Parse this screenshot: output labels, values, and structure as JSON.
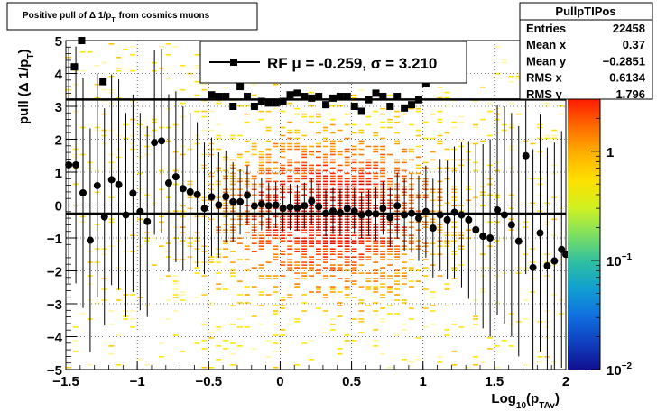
{
  "title": "Positive pull of Δ 1/p",
  "title_sub": "T",
  "title_tail": "from cosmics muons",
  "stats": {
    "name": "PullpTIPos",
    "rows": [
      {
        "label": "Entries",
        "value": "22458"
      },
      {
        "label": "Mean x",
        "value": "0.37"
      },
      {
        "label": "Mean y",
        "value": "−0.2851"
      },
      {
        "label": "RMS x",
        "value": "0.6134"
      },
      {
        "label": "RMS y",
        "value": "1.796"
      }
    ]
  },
  "legend": {
    "text": "RF μ = -0.259, σ =   3.210"
  },
  "colors": {
    "axis": "#000000",
    "marker": "#000000",
    "palette": [
      "#00007f",
      "#0000ff",
      "#0080ff",
      "#00ffff",
      "#80ff80",
      "#ffff00",
      "#ff8000",
      "#ff0000",
      "#800000"
    ]
  },
  "chart_data": {
    "type": "scatter",
    "title": "Positive pull of Δ 1/pT from cosmics muons",
    "xlabel": "Log10(pTAv)",
    "xlabel_main": "Log",
    "xlabel_sub1": "10",
    "xlabel_mid": "(p",
    "xlabel_sub2": "TAv",
    "xlabel_end": ")",
    "ylabel": "pull (Δ 1/pT)",
    "ylabel_main": "pull (Δ 1/p",
    "ylabel_sub": "T",
    "ylabel_end": ")",
    "xlim": [
      -1.5,
      2.0
    ],
    "ylim": [
      -5,
      5
    ],
    "x_ticks": [
      -1.5,
      -1,
      -0.5,
      0,
      0.5,
      1,
      1.5,
      2
    ],
    "x_tick_labels": [
      "−1.5",
      "−1",
      "−0.5",
      "0",
      "0.5",
      "1",
      "1.5",
      "2"
    ],
    "y_ticks": [
      -5,
      -4,
      -3,
      -2,
      -1,
      0,
      1,
      2,
      3,
      4,
      5
    ],
    "y_tick_labels": [
      "−5",
      "−4",
      "−3",
      "−2",
      "−1",
      "0",
      "1",
      "2",
      "3",
      "4",
      "5"
    ],
    "grid": true,
    "colorbar": {
      "scale": "log",
      "range": [
        0.01,
        3
      ],
      "tick_values": [
        1,
        0.1,
        0.01
      ],
      "tick_bases": [
        "1",
        "10",
        "10"
      ],
      "tick_exps": [
        "",
        "−1",
        "−2"
      ]
    },
    "mean_line": -0.259,
    "sigma_line": 3.21,
    "profile_points": [
      [
        -1.48,
        1.22,
        3.6
      ],
      [
        -1.43,
        1.22,
        3.6
      ],
      [
        -1.38,
        0.37,
        3.5
      ],
      [
        -1.33,
        -1.07,
        3.4
      ],
      [
        -1.28,
        0.59,
        3.4
      ],
      [
        -1.23,
        -0.36,
        3.3
      ],
      [
        -1.18,
        0.77,
        3.2
      ],
      [
        -1.13,
        0.62,
        3.2
      ],
      [
        -1.08,
        -0.3,
        3.1
      ],
      [
        -1.03,
        0.36,
        3.0
      ],
      [
        -0.98,
        -0.2,
        3.0
      ],
      [
        -0.93,
        -0.5,
        2.9
      ],
      [
        -0.88,
        1.9,
        2.8
      ],
      [
        -0.83,
        1.95,
        2.8
      ],
      [
        -0.78,
        0.67,
        2.7
      ],
      [
        -0.73,
        0.86,
        2.6
      ],
      [
        -0.68,
        0.5,
        2.5
      ],
      [
        -0.63,
        0.4,
        2.4
      ],
      [
        -0.58,
        0.32,
        2.2
      ],
      [
        -0.53,
        -0.1,
        2.0
      ],
      [
        -0.48,
        0.25,
        1.8
      ],
      [
        -0.43,
        0.0,
        1.6
      ],
      [
        -0.38,
        0.26,
        1.4
      ],
      [
        -0.33,
        0.1,
        1.2
      ],
      [
        -0.28,
        0.1,
        1.0
      ],
      [
        -0.23,
        0.3,
        0.9
      ],
      [
        -0.18,
        -0.03,
        0.8
      ],
      [
        -0.13,
        0.03,
        0.8
      ],
      [
        -0.08,
        -0.02,
        0.7
      ],
      [
        -0.03,
        0.0,
        0.7
      ],
      [
        0.02,
        -0.1,
        0.7
      ],
      [
        0.07,
        -0.06,
        0.7
      ],
      [
        0.12,
        -0.08,
        0.7
      ],
      [
        0.17,
        -0.02,
        0.7
      ],
      [
        0.22,
        0.12,
        0.7
      ],
      [
        0.27,
        -0.05,
        0.7
      ],
      [
        0.32,
        -0.25,
        0.7
      ],
      [
        0.37,
        -0.18,
        0.7
      ],
      [
        0.42,
        -0.23,
        0.7
      ],
      [
        0.47,
        -0.1,
        0.7
      ],
      [
        0.52,
        -0.18,
        0.7
      ],
      [
        0.57,
        -0.3,
        0.7
      ],
      [
        0.62,
        -0.25,
        0.7
      ],
      [
        0.67,
        -0.27,
        0.8
      ],
      [
        0.72,
        -0.1,
        0.8
      ],
      [
        0.77,
        -0.38,
        0.9
      ],
      [
        0.82,
        -0.02,
        1.0
      ],
      [
        0.87,
        -0.3,
        1.1
      ],
      [
        0.92,
        -0.25,
        1.2
      ],
      [
        0.97,
        -0.4,
        1.3
      ],
      [
        1.02,
        -0.2,
        1.4
      ],
      [
        1.07,
        -0.7,
        1.5
      ],
      [
        1.12,
        -0.3,
        1.7
      ],
      [
        1.17,
        -0.45,
        1.8
      ],
      [
        1.22,
        -0.22,
        2.0
      ],
      [
        1.27,
        -0.3,
        2.2
      ],
      [
        1.32,
        -0.45,
        2.4
      ],
      [
        1.37,
        -0.75,
        2.6
      ],
      [
        1.42,
        -0.95,
        2.8
      ],
      [
        1.47,
        -1.0,
        3.0
      ],
      [
        1.52,
        -0.15,
        3.2
      ],
      [
        1.57,
        -0.3,
        3.3
      ],
      [
        1.62,
        -0.6,
        3.4
      ],
      [
        1.67,
        -1.1,
        3.5
      ],
      [
        1.72,
        1.5,
        3.6
      ],
      [
        1.77,
        -1.9,
        3.6
      ],
      [
        1.82,
        -0.85,
        3.6
      ],
      [
        1.87,
        -1.85,
        3.6
      ],
      [
        1.92,
        -1.7,
        3.6
      ],
      [
        1.97,
        -1.35,
        3.6
      ],
      [
        2.0,
        -1.5,
        3.6
      ]
    ],
    "high_points": [
      [
        -1.44,
        4.2
      ],
      [
        -1.39,
        5.0
      ],
      [
        -1.24,
        3.75
      ],
      [
        -0.48,
        3.35
      ],
      [
        -0.43,
        3.3
      ],
      [
        -0.38,
        3.3
      ],
      [
        -0.33,
        3.0
      ],
      [
        -0.28,
        3.6
      ],
      [
        -0.23,
        3.3
      ],
      [
        -0.18,
        3.0
      ],
      [
        -0.13,
        3.15
      ],
      [
        -0.08,
        3.1
      ],
      [
        -0.03,
        3.1
      ],
      [
        0.02,
        3.15
      ],
      [
        0.07,
        3.35
      ],
      [
        0.12,
        3.4
      ],
      [
        0.17,
        3.3
      ],
      [
        0.22,
        3.25
      ],
      [
        0.27,
        3.3
      ],
      [
        0.32,
        3.05
      ],
      [
        0.37,
        3.25
      ],
      [
        0.42,
        3.3
      ],
      [
        0.47,
        3.3
      ],
      [
        0.52,
        3.0
      ],
      [
        0.57,
        2.85
      ],
      [
        0.62,
        3.2
      ],
      [
        0.67,
        3.4
      ],
      [
        0.72,
        3.3
      ],
      [
        0.77,
        3.0
      ],
      [
        0.82,
        3.3
      ],
      [
        0.87,
        2.95
      ],
      [
        0.92,
        3.05
      ],
      [
        0.97,
        3.2
      ],
      [
        1.02,
        3.7
      ],
      [
        1.07,
        3.9
      ]
    ]
  }
}
